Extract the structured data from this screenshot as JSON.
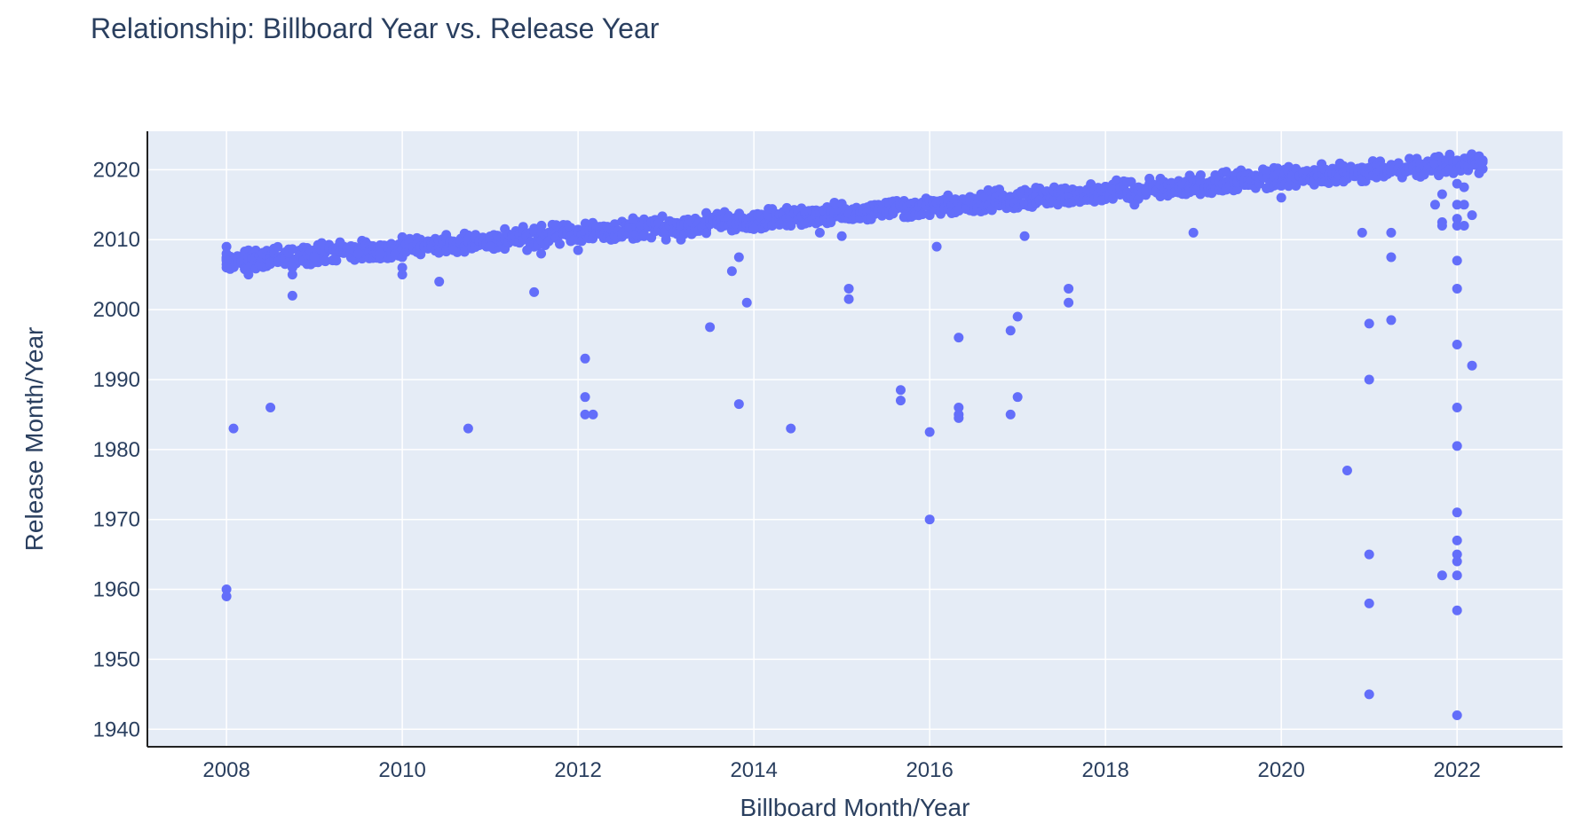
{
  "chart_data": {
    "type": "scatter",
    "title": "Relationship: Billboard Year vs. Release Year",
    "xlabel": "Billboard Month/Year",
    "ylabel": "Release Month/Year",
    "xlim": [
      2007.1,
      2023.2
    ],
    "ylim": [
      1937.5,
      2025.5
    ],
    "x_ticks": [
      2008,
      2010,
      2012,
      2014,
      2016,
      2018,
      2020,
      2022
    ],
    "y_ticks": [
      1940,
      1950,
      1960,
      1970,
      1980,
      1990,
      2000,
      2010,
      2020
    ],
    "grid": true,
    "legend": "none",
    "colors": {
      "marker": "#636efa",
      "plot_bg": "#e5ecf6",
      "grid": "#ffffff",
      "text": "#2a3f5f"
    },
    "main_trend": {
      "x_start": 2008.0,
      "x_end": 2022.33,
      "y_start": 2008.0,
      "y_end": 2022.2
    },
    "points": [
      [
        2008.0,
        2009.0
      ],
      [
        2008.0,
        2008.0
      ],
      [
        2008.0,
        2007.0
      ],
      [
        2008.0,
        2006.0
      ],
      [
        2008.0,
        1960.0
      ],
      [
        2008.0,
        1959.0
      ],
      [
        2008.08,
        1983.0
      ],
      [
        2008.5,
        1986.0
      ],
      [
        2008.25,
        2005.0
      ],
      [
        2008.75,
        2006.0
      ],
      [
        2008.75,
        2005.0
      ],
      [
        2008.75,
        2002.0
      ],
      [
        2009.0,
        2007.5
      ],
      [
        2009.25,
        2007.0
      ],
      [
        2009.5,
        2008.0
      ],
      [
        2009.75,
        2008.0
      ],
      [
        2010.0,
        2006.0
      ],
      [
        2010.0,
        2005.0
      ],
      [
        2010.42,
        2004.0
      ],
      [
        2010.58,
        2008.5
      ],
      [
        2010.75,
        1983.0
      ],
      [
        2011.0,
        2009.0
      ],
      [
        2011.42,
        2008.5
      ],
      [
        2011.5,
        2002.5
      ],
      [
        2011.58,
        2008.0
      ],
      [
        2012.0,
        2008.5
      ],
      [
        2012.08,
        1993.0
      ],
      [
        2012.08,
        1987.5
      ],
      [
        2012.08,
        1985.0
      ],
      [
        2012.17,
        1985.0
      ],
      [
        2013.0,
        2010.0
      ],
      [
        2013.17,
        2010.0
      ],
      [
        2013.5,
        1997.5
      ],
      [
        2013.75,
        2005.5
      ],
      [
        2013.83,
        2007.5
      ],
      [
        2013.83,
        1986.5
      ],
      [
        2013.92,
        2001.0
      ],
      [
        2014.0,
        2011.5
      ],
      [
        2014.42,
        2012.0
      ],
      [
        2014.42,
        1983.0
      ],
      [
        2014.75,
        2011.0
      ],
      [
        2015.0,
        2010.5
      ],
      [
        2015.08,
        2003.0
      ],
      [
        2015.08,
        2001.5
      ],
      [
        2015.67,
        1988.5
      ],
      [
        2015.67,
        1987.0
      ],
      [
        2016.0,
        1982.5
      ],
      [
        2016.0,
        1970.0
      ],
      [
        2016.08,
        2009.0
      ],
      [
        2016.33,
        1996.0
      ],
      [
        2016.33,
        1986.0
      ],
      [
        2016.33,
        1985.0
      ],
      [
        2016.33,
        1984.5
      ],
      [
        2016.92,
        1997.0
      ],
      [
        2016.92,
        1985.0
      ],
      [
        2017.0,
        1999.0
      ],
      [
        2017.0,
        1987.5
      ],
      [
        2017.08,
        2010.5
      ],
      [
        2017.58,
        2003.0
      ],
      [
        2017.58,
        2001.0
      ],
      [
        2018.33,
        2015.0
      ],
      [
        2019.08,
        2016.5
      ],
      [
        2019.0,
        2011.0
      ],
      [
        2020.0,
        2016.0
      ],
      [
        2020.75,
        1977.0
      ],
      [
        2020.92,
        2011.0
      ],
      [
        2021.0,
        1998.0
      ],
      [
        2021.0,
        1990.0
      ],
      [
        2021.0,
        1965.0
      ],
      [
        2021.0,
        1958.0
      ],
      [
        2021.0,
        1945.0
      ],
      [
        2021.25,
        2011.0
      ],
      [
        2021.25,
        2007.5
      ],
      [
        2021.25,
        1998.5
      ],
      [
        2021.75,
        2015.0
      ],
      [
        2021.83,
        2012.5
      ],
      [
        2021.83,
        2012.0
      ],
      [
        2021.83,
        1962.0
      ],
      [
        2021.83,
        2016.5
      ],
      [
        2022.0,
        2018.0
      ],
      [
        2022.0,
        2015.0
      ],
      [
        2022.0,
        2013.0
      ],
      [
        2022.0,
        2012.0
      ],
      [
        2022.0,
        2007.0
      ],
      [
        2022.0,
        2003.0
      ],
      [
        2022.0,
        1995.0
      ],
      [
        2022.0,
        1986.0
      ],
      [
        2022.0,
        1980.5
      ],
      [
        2022.0,
        1971.0
      ],
      [
        2022.0,
        1967.0
      ],
      [
        2022.0,
        1965.0
      ],
      [
        2022.0,
        1964.0
      ],
      [
        2022.0,
        1962.0
      ],
      [
        2022.0,
        1957.0
      ],
      [
        2022.0,
        1942.0
      ],
      [
        2022.08,
        2017.5
      ],
      [
        2022.08,
        2015.0
      ],
      [
        2022.08,
        2012.0
      ],
      [
        2022.17,
        2013.5
      ],
      [
        2022.17,
        1992.0
      ],
      [
        2022.25,
        2019.5
      ]
    ]
  }
}
